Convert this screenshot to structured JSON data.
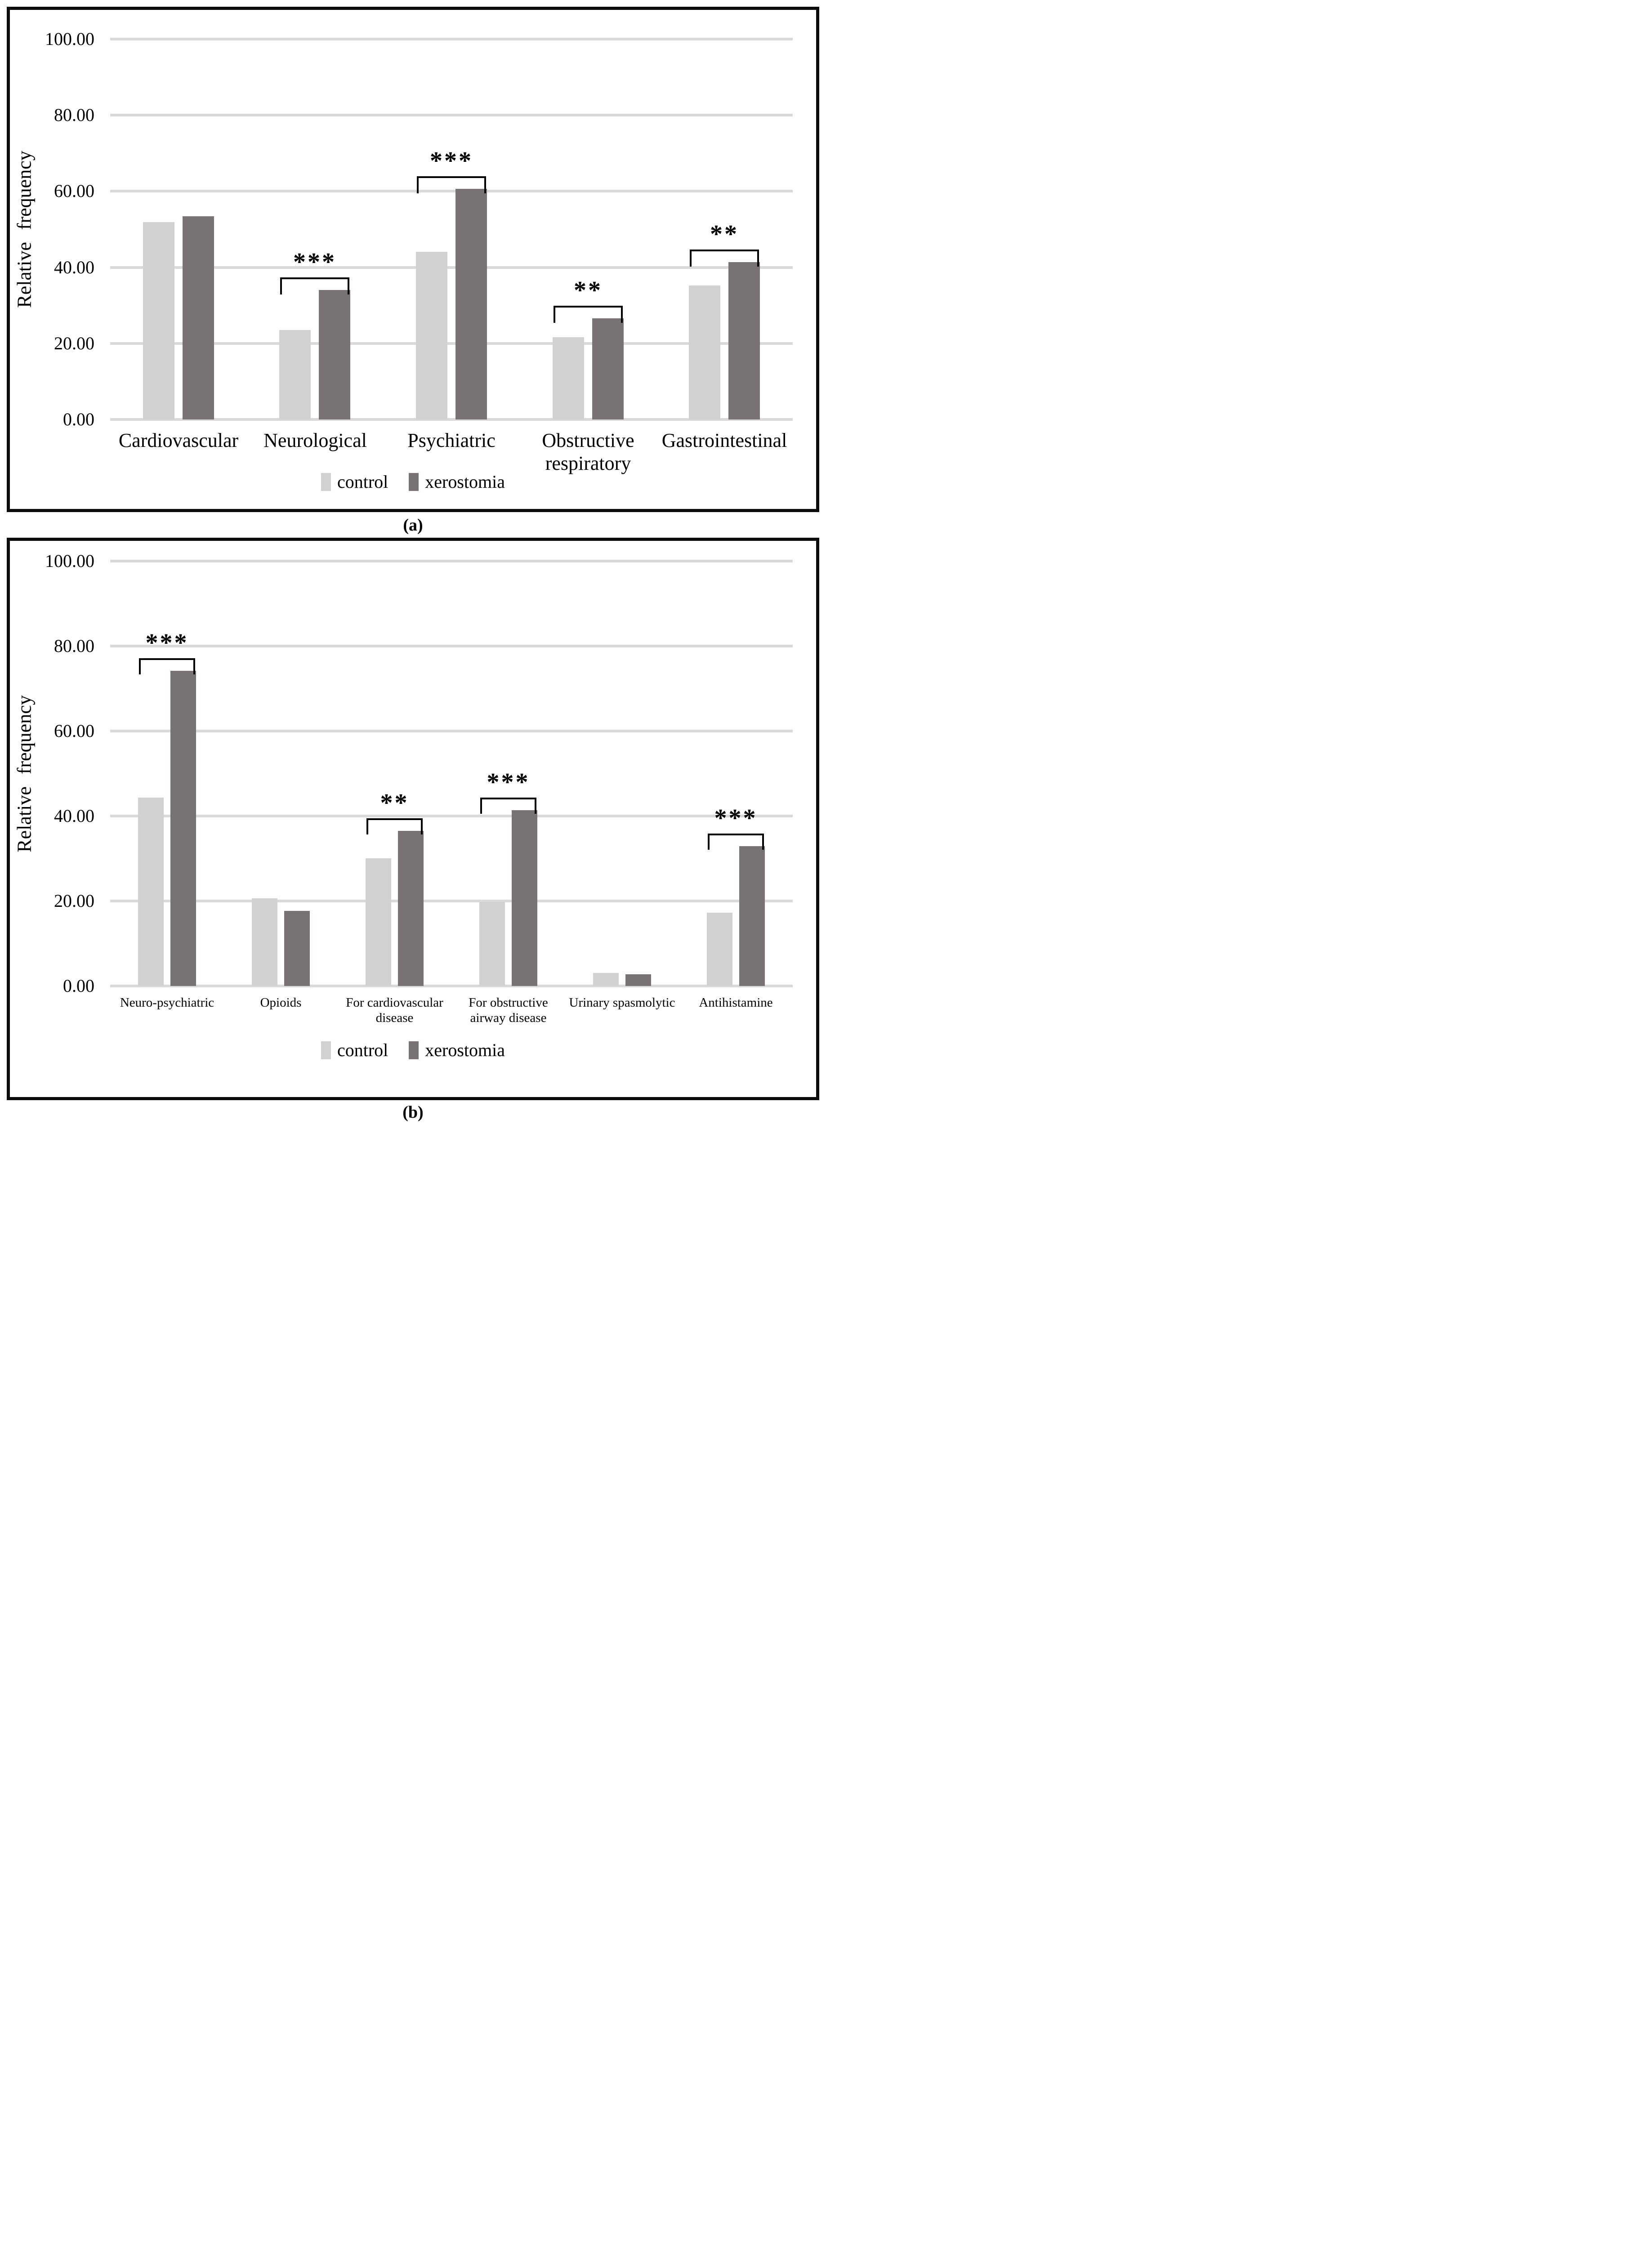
{
  "figure_type": "two-panel grouped bar chart figure",
  "colors": {
    "control_bar": "#d2d1cf",
    "xerostomia_bar": "#787273",
    "gridline": "#d9d9d9",
    "frame_border": "#0c0c0c",
    "text": "#000000"
  },
  "chart_data": [
    {
      "type": "bar",
      "title": "(a)",
      "ylabel": "Relative frequency",
      "ylim": [
        0,
        100
      ],
      "yticks": [
        0,
        20,
        40,
        60,
        80,
        100
      ],
      "ytick_labels": [
        "0.00",
        "20.00",
        "40.00",
        "60.00",
        "80.00",
        "100.00"
      ],
      "grid": true,
      "legend_position": "bottom",
      "categories": [
        "Cardiovascular",
        "Neurological",
        "Psychiatric",
        "Obstructive respiratory",
        "Gastrointestinal"
      ],
      "series": [
        {
          "name": "control",
          "color": "#d2d1cf",
          "values": [
            51.9,
            23.5,
            44.1,
            21.6,
            35.2
          ]
        },
        {
          "name": "xerostomia",
          "color": "#787273",
          "values": [
            53.4,
            34.0,
            60.6,
            26.6,
            41.4
          ]
        }
      ],
      "significance": [
        {
          "category_index": 1,
          "label": "***"
        },
        {
          "category_index": 2,
          "label": "***"
        },
        {
          "category_index": 3,
          "label": "**"
        },
        {
          "category_index": 4,
          "label": "**"
        }
      ]
    },
    {
      "type": "bar",
      "title": "(b)",
      "ylabel": "Relative frequency",
      "ylim": [
        0,
        100
      ],
      "yticks": [
        0,
        20,
        40,
        60,
        80,
        100
      ],
      "ytick_labels": [
        "0.00",
        "20.00",
        "40.00",
        "60.00",
        "80.00",
        "100.00"
      ],
      "grid": true,
      "legend_position": "bottom",
      "categories": [
        "Neuro-psychiatric",
        "Opioids",
        "For cardiovascular disease",
        "For obstructive airway disease",
        "Urinary spasmolytic",
        "Antihistamine"
      ],
      "series": [
        {
          "name": "control",
          "color": "#d2d1cf",
          "values": [
            44.3,
            20.6,
            30.1,
            19.8,
            3.1,
            17.3
          ]
        },
        {
          "name": "xerostomia",
          "color": "#787273",
          "values": [
            74.2,
            17.7,
            36.5,
            41.4,
            2.7,
            32.9
          ]
        }
      ],
      "significance": [
        {
          "category_index": 0,
          "label": "***"
        },
        {
          "category_index": 2,
          "label": "**"
        },
        {
          "category_index": 3,
          "label": "***"
        },
        {
          "category_index": 5,
          "label": "***"
        }
      ]
    }
  ]
}
